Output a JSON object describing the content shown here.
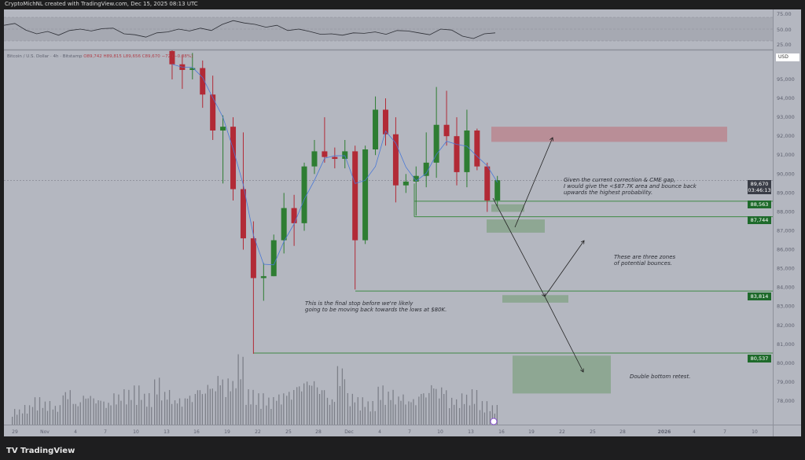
{
  "header": {
    "credit": "CryptoMichNL created with TradingView.com, Dec 15, 2025 08:13 UTC"
  },
  "legend": {
    "symbol": "Bitcoin / U.S. Dollar · 4h · Bitstamp",
    "open": "O89,742",
    "high": "H89,815",
    "low": "L89,656",
    "close": "C89,670",
    "change": "−72 (−0.08%)"
  },
  "currency_button": "USD",
  "footer": {
    "brand": "TradingView"
  },
  "price_labels": {
    "last": "89,670",
    "countdown": "03:46:13",
    "levels": [
      "88,563",
      "87,744",
      "83,814",
      "80,537"
    ]
  },
  "annotations": {
    "cme": [
      "Given the current correction & CME gap,",
      "I would give the <$87.7K area and bounce back",
      "upwards the highest probability."
    ],
    "zones": [
      "These are three zones",
      "of potential bounces."
    ],
    "final": [
      "This is the final stop before we're likely",
      "going to be moving back towards the lows at $80K."
    ],
    "double": "Double bottom retest."
  },
  "colors": {
    "background": "#b4b7c0",
    "up": "#2e7d32",
    "down": "#b22a36",
    "ma": "#4a78d6",
    "zone_green": "#8aa58e",
    "zone_red": "#b98a92",
    "level_line": "#3f8a45"
  },
  "chart_data": {
    "type": "candlestick",
    "title": "Bitcoin / U.S. Dollar · 4h · Bitstamp",
    "ylim": [
      77000,
      97000
    ],
    "yticks": [
      78000,
      79000,
      80000,
      81000,
      82000,
      83000,
      84000,
      85000,
      86000,
      87000,
      88000,
      89000,
      90000,
      91000,
      92000,
      93000,
      94000,
      95000
    ],
    "ytick_labels": [
      "78,000",
      "79,000",
      "80,000",
      "81,000",
      "82,000",
      "83,000",
      "84,000",
      "85,000",
      "86,000",
      "87,000",
      "88,000",
      "89,000",
      "90,000",
      "91,000",
      "92,000",
      "93,000",
      "94,000",
      "95,000"
    ],
    "xtick_labels": [
      "29",
      "Nov",
      "4",
      "7",
      "10",
      "13",
      "16",
      "19",
      "22",
      "25",
      "28",
      "Dec",
      "4",
      "7",
      "10",
      "13",
      "16",
      "19",
      "22",
      "25",
      "28",
      "2026",
      "4",
      "7",
      "10"
    ],
    "candles": [
      [
        "2025-11-13",
        96500,
        97000,
        95000,
        95800
      ],
      [
        "2025-11-14",
        95800,
        96300,
        94500,
        95500
      ],
      [
        "2025-11-15",
        95500,
        96400,
        95000,
        95600
      ],
      [
        "2025-11-16",
        95600,
        96000,
        93500,
        94200
      ],
      [
        "2025-11-17",
        94200,
        95200,
        91800,
        92300
      ],
      [
        "2025-11-18",
        92300,
        93100,
        89500,
        92500
      ],
      [
        "2025-11-19",
        92500,
        93000,
        88600,
        89200
      ],
      [
        "2025-11-20",
        89200,
        92200,
        86000,
        86600
      ],
      [
        "2025-11-21",
        86600,
        87500,
        80500,
        84500
      ],
      [
        "2025-11-22",
        84500,
        85300,
        83300,
        84600
      ],
      [
        "2025-11-23",
        84600,
        86800,
        84600,
        86500
      ],
      [
        "2025-11-24",
        86500,
        89000,
        85800,
        88200
      ],
      [
        "2025-11-25",
        88200,
        88900,
        86200,
        87400
      ],
      [
        "2025-11-26",
        87400,
        90600,
        87000,
        90400
      ],
      [
        "2025-11-27",
        90400,
        91800,
        90000,
        91200
      ],
      [
        "2025-11-28",
        91200,
        93000,
        90600,
        90900
      ],
      [
        "2025-11-29",
        90900,
        91400,
        90300,
        90800
      ],
      [
        "2025-11-30",
        90800,
        91800,
        90300,
        91200
      ],
      [
        "2025-12-01",
        91200,
        91500,
        83900,
        86500
      ],
      [
        "2025-12-02",
        86500,
        91500,
        86300,
        91300
      ],
      [
        "2025-12-03",
        91300,
        94100,
        91000,
        93400
      ],
      [
        "2025-12-04",
        93400,
        94000,
        91500,
        92100
      ],
      [
        "2025-12-05",
        92100,
        93000,
        88500,
        89400
      ],
      [
        "2025-12-06",
        89400,
        90000,
        89000,
        89600
      ],
      [
        "2025-12-07",
        89600,
        90400,
        87800,
        89900
      ],
      [
        "2025-12-08",
        89900,
        92200,
        89300,
        90600
      ],
      [
        "2025-12-09",
        90600,
        94600,
        89800,
        92600
      ],
      [
        "2025-12-10",
        92600,
        94400,
        91500,
        92000
      ],
      [
        "2025-12-11",
        92000,
        93000,
        89400,
        90100
      ],
      [
        "2025-12-12",
        90100,
        93400,
        89300,
        92300
      ],
      [
        "2025-12-13",
        92300,
        92400,
        90200,
        90400
      ],
      [
        "2025-12-14",
        90400,
        90600,
        88000,
        88600
      ],
      [
        "2025-12-15",
        88600,
        89900,
        88300,
        89670
      ]
    ],
    "volume_relative": [
      20,
      25,
      35,
      30,
      25,
      45,
      30,
      40,
      35,
      30,
      40,
      45,
      50,
      40,
      60,
      45,
      35,
      40,
      50,
      55,
      65,
      60,
      90,
      45,
      40,
      35,
      40,
      45,
      55,
      60,
      50,
      35,
      75,
      40,
      35,
      30,
      50,
      45,
      40,
      35,
      45,
      55,
      50,
      35,
      40,
      45,
      30,
      25
    ],
    "rsi": {
      "ylim": [
        25,
        75
      ],
      "yticks": [
        "75.00",
        "50.00",
        "25.00"
      ],
      "values": [
        58,
        62,
        48,
        40,
        45,
        37,
        47,
        50,
        46,
        51,
        52,
        40,
        38,
        33,
        42,
        44,
        50,
        46,
        52,
        47,
        60,
        68,
        63,
        60,
        54,
        58,
        47,
        50,
        45,
        39,
        40,
        37,
        42,
        41,
        44,
        39,
        47,
        46,
        42,
        38,
        50,
        48,
        35,
        30,
        40,
        42
      ]
    },
    "levels": [
      88563,
      87744,
      83814,
      80537
    ],
    "last_price": 89670
  }
}
